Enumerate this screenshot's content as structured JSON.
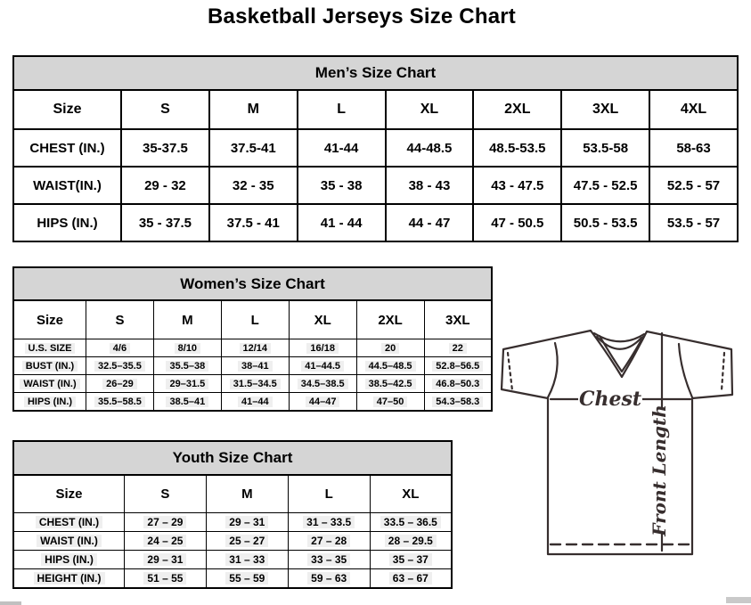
{
  "page": {
    "title": "Basketball Jerseys Size Chart"
  },
  "tables": [
    {
      "id": "mens",
      "title": "Men’s Size Chart",
      "header": [
        "Size",
        "S",
        "M",
        "L",
        "XL",
        "2XL",
        "3XL",
        "4XL"
      ],
      "rows": [
        {
          "label": "CHEST (IN.)",
          "values": [
            "35-37.5",
            "37.5-41",
            "41-44",
            "44-48.5",
            "48.5-53.5",
            "53.5-58",
            "58-63"
          ]
        },
        {
          "label": "WAIST(IN.)",
          "values": [
            "29 - 32",
            "32 - 35",
            "35 - 38",
            "38 - 43",
            "43 - 47.5",
            "47.5 - 52.5",
            "52.5 - 57"
          ]
        },
        {
          "label": "HIPS (IN.)",
          "values": [
            "35 - 37.5",
            "37.5 - 41",
            "41 - 44",
            "44 - 47",
            "47 - 50.5",
            "50.5 - 53.5",
            "53.5 - 57"
          ]
        }
      ]
    },
    {
      "id": "womens",
      "title": "Women’s Size Chart",
      "header": [
        "Size",
        "S",
        "M",
        "L",
        "XL",
        "2XL",
        "3XL"
      ],
      "rows": [
        {
          "label": "U.S. SIZE",
          "values": [
            "4/6",
            "8/10",
            "12/14",
            "16/18",
            "20",
            "22"
          ]
        },
        {
          "label": "BUST (IN.)",
          "values": [
            "32.5–35.5",
            "35.5–38",
            "38–41",
            "41–44.5",
            "44.5–48.5",
            "52.8–56.5"
          ]
        },
        {
          "label": "WAIST (IN.)",
          "values": [
            "26–29",
            "29–31.5",
            "31.5–34.5",
            "34.5–38.5",
            "38.5–42.5",
            "46.8–50.3"
          ]
        },
        {
          "label": "HIPS (IN.)",
          "values": [
            "35.5–58.5",
            "38.5–41",
            "41–44",
            "44–47",
            "47–50",
            "54.3–58.3"
          ]
        }
      ]
    },
    {
      "id": "youth",
      "title": "Youth Size Chart",
      "header": [
        "Size",
        "S",
        "M",
        "L",
        "XL"
      ],
      "rows": [
        {
          "label": "CHEST (IN.)",
          "values": [
            "27 – 29",
            "29 – 31",
            "31 – 33.5",
            "33.5 – 36.5"
          ]
        },
        {
          "label": "WAIST (IN.)",
          "values": [
            "24 – 25",
            "25 – 27",
            "27 – 28",
            "28 – 29.5"
          ]
        },
        {
          "label": "HIPS (IN.)",
          "values": [
            "29 – 31",
            "31 – 33",
            "33 – 35",
            "35 – 37"
          ]
        },
        {
          "label": "HEIGHT (IN.)",
          "values": [
            "51 – 55",
            "55 – 59",
            "59 – 63",
            "63 – 67"
          ]
        }
      ]
    }
  ],
  "jersey": {
    "chest_label": "Chest",
    "front_length_label": "Front Length"
  },
  "colors": {
    "table_title_bg": "#d5d5d5",
    "table_border": "#000000",
    "text": "#000000",
    "jersey_line": "#372e2e",
    "row_highlight": "#efefef"
  }
}
